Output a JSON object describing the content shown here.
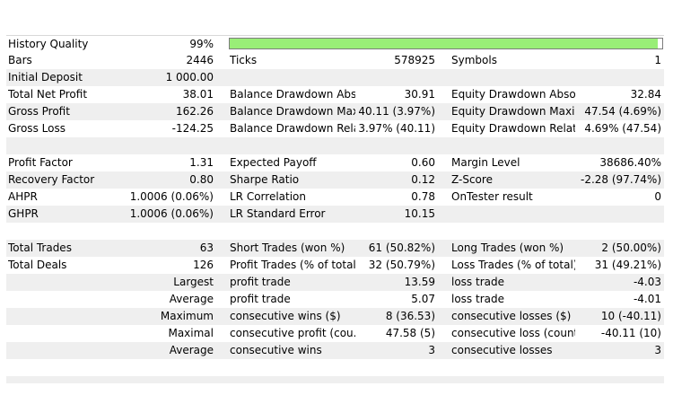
{
  "history_quality": {
    "label": "History Quality",
    "value": "99%",
    "progress_percent": 99,
    "bar_color": "#99ee77"
  },
  "rows": [
    {
      "shade": false,
      "c": [
        "Bars",
        "2446",
        "Ticks",
        "578925",
        "Symbols",
        "1"
      ]
    },
    {
      "shade": true,
      "c": [
        "Initial Deposit",
        "1 000.00",
        "",
        "",
        "",
        ""
      ]
    },
    {
      "shade": false,
      "c": [
        "Total Net Profit",
        "38.01",
        "Balance Drawdown Abs...",
        "30.91",
        "Equity Drawdown Absol...",
        "32.84"
      ]
    },
    {
      "shade": true,
      "c": [
        "Gross Profit",
        "162.26",
        "Balance Drawdown Max...",
        "40.11 (3.97%)",
        "Equity Drawdown Maxi...",
        "47.54 (4.69%)"
      ]
    },
    {
      "shade": false,
      "c": [
        "Gross Loss",
        "-124.25",
        "Balance Drawdown Rela...",
        "3.97% (40.11)",
        "Equity Drawdown Relati...",
        "4.69% (47.54)"
      ]
    },
    {
      "shade": true,
      "c": [
        "",
        "",
        "",
        "",
        "",
        ""
      ]
    },
    {
      "shade": false,
      "c": [
        "Profit Factor",
        "1.31",
        "Expected Payoff",
        "0.60",
        "Margin Level",
        "38686.40%"
      ]
    },
    {
      "shade": true,
      "c": [
        "Recovery Factor",
        "0.80",
        "Sharpe Ratio",
        "0.12",
        "Z-Score",
        "-2.28 (97.74%)"
      ]
    },
    {
      "shade": false,
      "c": [
        "AHPR",
        "1.0006 (0.06%)",
        "LR Correlation",
        "0.78",
        "OnTester result",
        "0"
      ]
    },
    {
      "shade": true,
      "c": [
        "GHPR",
        "1.0006 (0.06%)",
        "LR Standard Error",
        "10.15",
        "",
        ""
      ]
    },
    {
      "shade": false,
      "c": [
        "",
        "",
        "",
        "",
        "",
        ""
      ]
    },
    {
      "shade": true,
      "c": [
        "Total Trades",
        "63",
        "Short Trades (won %)",
        "61 (50.82%)",
        "Long Trades (won %)",
        "2 (50.00%)"
      ]
    },
    {
      "shade": false,
      "c": [
        "Total Deals",
        "126",
        "Profit Trades (% of total)",
        "32 (50.79%)",
        "Loss Trades (% of total)",
        "31 (49.21%)"
      ]
    },
    {
      "shade": true,
      "sub": "Largest",
      "c": [
        "",
        "",
        "profit trade",
        "13.59",
        "loss trade",
        "-4.03"
      ]
    },
    {
      "shade": false,
      "sub": "Average",
      "c": [
        "",
        "",
        "profit trade",
        "5.07",
        "loss trade",
        "-4.01"
      ]
    },
    {
      "shade": true,
      "sub": "Maximum",
      "c": [
        "",
        "",
        "consecutive wins ($)",
        "8 (36.53)",
        "consecutive losses ($)",
        "10 (-40.11)"
      ]
    },
    {
      "shade": false,
      "sub": "Maximal",
      "c": [
        "",
        "",
        "consecutive profit (cou...",
        "47.58 (5)",
        "consecutive loss (count)",
        "-40.11 (10)"
      ]
    },
    {
      "shade": true,
      "sub": "Average",
      "c": [
        "",
        "",
        "consecutive wins",
        "3",
        "consecutive losses",
        "3"
      ]
    },
    {
      "shade": false,
      "c": [
        "",
        "",
        "",
        "",
        "",
        ""
      ]
    }
  ]
}
